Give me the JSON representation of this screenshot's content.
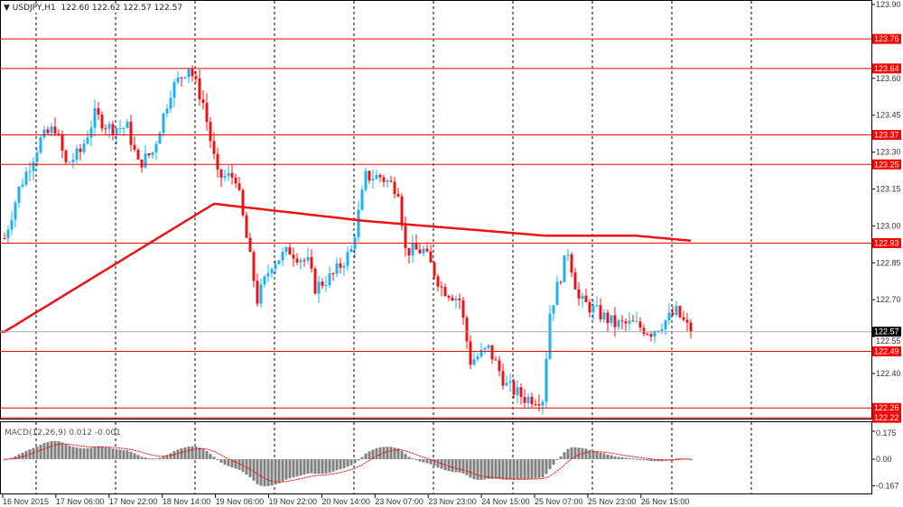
{
  "header": {
    "symbol_timeframe": "USDJPY,H1",
    "ohlc": "122.60 122.62 122.57 122.57"
  },
  "macd": {
    "label": "MACD(12,26,9) 0.012 -0.001",
    "scale": [
      "0.175",
      "0.00",
      "-0.167"
    ],
    "scale_values": [
      0.175,
      0,
      -0.167
    ]
  },
  "price_axis": {
    "ticks": [
      "123.90",
      "123.60",
      "123.45",
      "123.30",
      "123.15",
      "123.00",
      "122.85",
      "122.70",
      "122.55",
      "122.40"
    ],
    "range": [
      122.2,
      123.92
    ]
  },
  "levels": [
    {
      "label": "123.76",
      "value": 123.76
    },
    {
      "label": "123.64",
      "value": 123.64
    },
    {
      "label": "123.37",
      "value": 123.37
    },
    {
      "label": "123.25",
      "value": 123.25
    },
    {
      "label": "122.93",
      "value": 122.93
    },
    {
      "label": "122.49",
      "value": 122.49
    },
    {
      "label": "122.26",
      "value": 122.26
    },
    {
      "label": "122.22",
      "value": 122.22
    }
  ],
  "current_price": {
    "label": "122.57",
    "value": 122.57
  },
  "time_axis": [
    "16 Nov 2015",
    "17 Nov 06:00",
    "17 Nov 22:00",
    "18 Nov 14:00",
    "19 Nov 06:00",
    "19 Nov 22:00",
    "20 Nov 14:00",
    "23 Nov 07:00",
    "23 Nov 23:00",
    "24 Nov 15:00",
    "25 Nov 07:00",
    "25 Nov 23:00",
    "26 Nov 15:00"
  ],
  "price_waypoints": [
    [
      0,
      122.95
    ],
    [
      4,
      123.15
    ],
    [
      7,
      123.25
    ],
    [
      10,
      123.35
    ],
    [
      14,
      123.4
    ],
    [
      17,
      123.25
    ],
    [
      21,
      123.3
    ],
    [
      25,
      123.45
    ],
    [
      29,
      123.4
    ],
    [
      34,
      123.4
    ],
    [
      37,
      123.25
    ],
    [
      41,
      123.3
    ],
    [
      46,
      123.55
    ],
    [
      51,
      123.65
    ],
    [
      55,
      123.5
    ],
    [
      59,
      123.2
    ],
    [
      64,
      123.2
    ],
    [
      67,
      122.95
    ],
    [
      70,
      122.7
    ],
    [
      74,
      122.85
    ],
    [
      79,
      122.9
    ],
    [
      84,
      122.85
    ],
    [
      86,
      122.75
    ],
    [
      91,
      122.8
    ],
    [
      96,
      122.9
    ],
    [
      100,
      123.2
    ],
    [
      104,
      123.2
    ],
    [
      109,
      123.15
    ],
    [
      111,
      122.9
    ],
    [
      116,
      122.9
    ],
    [
      121,
      122.75
    ],
    [
      126,
      122.7
    ],
    [
      129,
      122.45
    ],
    [
      134,
      122.5
    ],
    [
      139,
      122.35
    ],
    [
      144,
      122.3
    ],
    [
      149,
      122.3
    ],
    [
      151,
      122.65
    ],
    [
      156,
      122.9
    ],
    [
      159,
      122.7
    ],
    [
      164,
      122.65
    ],
    [
      169,
      122.6
    ],
    [
      174,
      122.6
    ],
    [
      179,
      122.57
    ],
    [
      186,
      122.65
    ],
    [
      190,
      122.57
    ]
  ],
  "ma_waypoints": [
    [
      0,
      122.57
    ],
    [
      58,
      123.09
    ],
    [
      100,
      123.02
    ],
    [
      150,
      122.96
    ],
    [
      175,
      122.96
    ],
    [
      190,
      122.94
    ]
  ],
  "colors": {
    "bull": "#1ab2f0",
    "bear": "#ee1111",
    "level": "#ff0000",
    "ma": "#ee1111",
    "grid": "#000000"
  }
}
